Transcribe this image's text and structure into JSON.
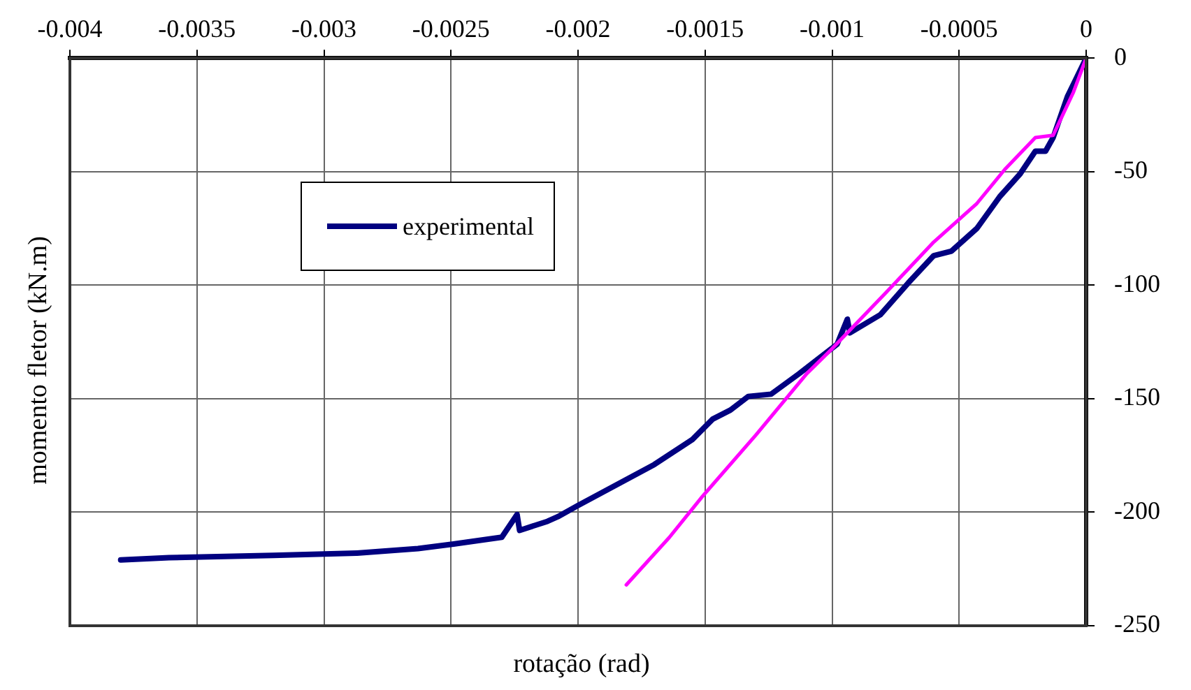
{
  "chart_data": {
    "type": "line",
    "xlabel": "rotação (rad)",
    "ylabel": "momento fletor (kN.m)",
    "xlim": [
      -0.004,
      0
    ],
    "ylim": [
      -250,
      0
    ],
    "xticks": [
      -0.004,
      -0.0035,
      -0.003,
      -0.0025,
      -0.002,
      -0.0015,
      -0.001,
      -0.0005,
      0
    ],
    "yticks": [
      -250,
      -200,
      -150,
      -100,
      -50,
      0
    ],
    "grid": true,
    "legend": "top left",
    "marker": "none",
    "line_style": "solid",
    "series": [
      {
        "name": "experimental",
        "color": "#000080",
        "x": [
          0,
          -7.4e-05,
          -0.00013,
          -0.00016,
          -0.0002,
          -0.00026,
          -0.00034,
          -0.00043,
          -0.00053,
          -0.0006,
          -0.0007,
          -0.00081,
          -0.00093,
          -0.00094,
          -0.00098,
          -0.00113,
          -0.00124,
          -0.00133,
          -0.0014,
          -0.00147,
          -0.00155,
          -0.0017,
          -0.00185,
          -0.002,
          -0.00208,
          -0.00212,
          -0.00223,
          -0.00224,
          -0.0023,
          -0.00249,
          -0.00263,
          -0.00287,
          -0.0032,
          -0.00361,
          -0.0038
        ],
        "values": [
          0,
          -17,
          -35,
          -41,
          -41,
          -51,
          -61,
          -75,
          -85,
          -87,
          -99,
          -113,
          -121,
          -115,
          -126,
          -139,
          -148,
          -149,
          -155,
          -159,
          -168,
          -179,
          -188,
          -197,
          -202,
          -204,
          -208,
          -201,
          -211,
          -214,
          -216,
          -218,
          -219,
          -220,
          -221
        ]
      },
      {
        "color": "#ff00ff",
        "x": [
          0,
          -5e-05,
          -0.00013,
          -0.0002,
          -0.00032,
          -0.00043,
          -0.0006,
          -0.00076,
          -0.001,
          -0.0011,
          -0.0013,
          -0.00151,
          -0.00164,
          -0.00181
        ],
        "values": [
          0,
          -15,
          -34,
          -35,
          -49,
          -64,
          -81,
          -100,
          -128,
          -139,
          -166,
          -193,
          -211,
          -232
        ]
      }
    ]
  }
}
